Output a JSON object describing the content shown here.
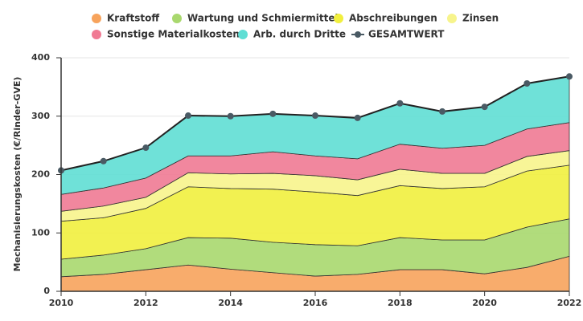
{
  "chart_data": {
    "type": "area",
    "stacked": true,
    "y_label": "Mechanisierungskosten (€/Rinder-GVE)",
    "x": [
      2010,
      2011,
      2012,
      2013,
      2014,
      2015,
      2016,
      2017,
      2018,
      2019,
      2020,
      2021,
      2022
    ],
    "xlim": [
      2010,
      2022
    ],
    "xticks": [
      2010,
      2012,
      2014,
      2016,
      2018,
      2020,
      2022
    ],
    "ylim": [
      0,
      400
    ],
    "yticks": [
      0,
      100,
      200,
      300,
      400
    ],
    "grid": true,
    "series": [
      {
        "name": "Kraftstoff",
        "color": "#f7a35c",
        "values": [
          25,
          29,
          37,
          45,
          38,
          32,
          26,
          29,
          37,
          37,
          30,
          41,
          60
        ]
      },
      {
        "name": "Wartung und Schmiermittel",
        "color": "#a9d86e",
        "values": [
          30,
          33,
          36,
          47,
          53,
          52,
          54,
          49,
          55,
          51,
          58,
          69,
          64
        ]
      },
      {
        "name": "Abschreibungen",
        "color": "#f1ef3e",
        "values": [
          65,
          64,
          69,
          87,
          85,
          91,
          90,
          86,
          89,
          88,
          91,
          96,
          92
        ]
      },
      {
        "name": "Zinsen",
        "color": "#f7f48c",
        "values": [
          17,
          20,
          19,
          24,
          25,
          27,
          28,
          27,
          28,
          26,
          23,
          25,
          25
        ]
      },
      {
        "name": "Sonstige Materialkosten",
        "color": "#f07a93",
        "values": [
          29,
          31,
          33,
          29,
          31,
          37,
          34,
          36,
          43,
          43,
          48,
          47,
          48
        ]
      },
      {
        "name": "Arb. durch Dritte",
        "color": "#5fded4",
        "values": [
          41,
          46,
          52,
          69,
          68,
          65,
          69,
          70,
          70,
          63,
          66,
          78,
          79
        ]
      },
      {
        "name": "GESAMTWERT",
        "color": "#4a5a64",
        "type": "line",
        "values": [
          207,
          223,
          246,
          301,
          300,
          304,
          301,
          297,
          322,
          308,
          316,
          356,
          368
        ]
      }
    ]
  }
}
